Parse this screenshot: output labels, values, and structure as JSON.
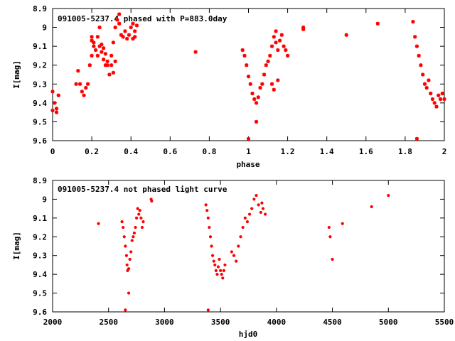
{
  "chart_data": [
    {
      "type": "scatter",
      "title": "091005-5237.4 phased with P=883.0day",
      "xlabel": "phase",
      "ylabel": "I[mag]",
      "xlim": [
        0,
        2
      ],
      "ylim": [
        9.6,
        8.9
      ],
      "y_inverted": true,
      "xticks": [
        "0",
        "0.2",
        "0.4",
        "0.6",
        "0.8",
        "1",
        "1.2",
        "1.4",
        "1.6",
        "1.8",
        "2"
      ],
      "yticks": [
        "8.9",
        "9",
        "9.1",
        "9.2",
        "9.3",
        "9.4",
        "9.5",
        "9.6"
      ],
      "marker_color": "#ff0000",
      "series": [
        {
          "x": [
            0.0,
            0.01,
            0.02,
            0.03,
            0.0,
            0.02,
            0.12,
            0.13,
            0.14,
            0.15,
            0.16,
            0.17,
            0.18,
            0.19,
            0.2,
            0.2,
            0.21,
            0.2,
            0.21,
            0.22,
            0.23,
            0.24,
            0.25,
            0.26,
            0.27,
            0.28,
            0.23,
            0.24,
            0.25,
            0.26,
            0.27,
            0.28,
            0.29,
            0.3,
            0.31,
            0.32,
            0.33,
            0.34,
            0.34,
            0.35,
            0.3,
            0.31,
            0.32,
            0.36,
            0.37,
            0.38,
            0.39,
            0.4,
            0.41,
            0.42,
            0.43,
            0.42,
            0.41,
            0.73,
            0.97,
            0.98,
            0.99,
            1.0,
            1.01,
            1.02,
            1.03,
            1.04,
            1.05,
            1.06,
            1.07,
            1.08,
            1.09,
            1.1,
            1.11,
            1.12,
            1.13,
            1.14,
            1.14,
            1.15,
            1.16,
            1.17,
            1.18,
            1.12,
            1.13,
            1.15,
            1.04,
            1.0,
            1.19,
            1.2,
            1.28,
            1.28,
            1.5,
            1.66,
            1.84,
            1.85,
            1.86,
            1.87,
            1.88,
            1.89,
            1.9,
            1.91,
            1.92,
            1.93,
            1.94,
            1.95,
            1.96,
            1.97,
            1.98,
            1.99,
            2.0,
            1.86
          ],
          "y": [
            9.34,
            9.4,
            9.45,
            9.36,
            9.44,
            9.43,
            9.3,
            9.23,
            9.3,
            9.34,
            9.36,
            9.32,
            9.3,
            9.2,
            9.15,
            9.07,
            9.1,
            9.05,
            9.08,
            9.12,
            9.15,
            9.1,
            9.13,
            9.17,
            9.2,
            9.18,
            9.05,
            9.0,
            9.09,
            9.11,
            9.14,
            9.2,
            9.25,
            9.15,
            9.08,
            9.0,
            8.96,
            8.93,
            8.98,
            9.04,
            9.2,
            9.24,
            9.18,
            9.05,
            9.02,
            9.06,
            9.04,
            9.0,
            8.98,
            9.02,
            8.99,
            9.05,
            9.06,
            9.13,
            9.12,
            9.15,
            9.2,
            9.26,
            9.3,
            9.35,
            9.38,
            9.4,
            9.37,
            9.32,
            9.3,
            9.25,
            9.2,
            9.18,
            9.15,
            9.1,
            9.05,
            9.02,
            9.08,
            9.12,
            9.07,
            9.04,
            9.1,
            9.3,
            9.33,
            9.28,
            9.5,
            9.59,
            9.12,
            9.15,
            9.0,
            9.01,
            9.04,
            8.98,
            8.97,
            9.05,
            9.1,
            9.15,
            9.2,
            9.25,
            9.3,
            9.32,
            9.28,
            9.35,
            9.38,
            9.4,
            9.42,
            9.36,
            9.38,
            9.35,
            9.38,
            9.59
          ]
        }
      ]
    },
    {
      "type": "scatter",
      "title": "091005-5237.4 not phased light curve",
      "xlabel": "hjd0",
      "ylabel": "I[mag]",
      "xlim": [
        2000,
        5500
      ],
      "ylim": [
        9.6,
        8.9
      ],
      "y_inverted": true,
      "xticks": [
        "2000",
        "2500",
        "3000",
        "3500",
        "4000",
        "4500",
        "5000",
        "5500"
      ],
      "yticks": [
        "8.9",
        "9",
        "9.1",
        "9.2",
        "9.3",
        "9.4",
        "9.5",
        "9.6"
      ],
      "marker_color": "#ff0000",
      "series": [
        {
          "x": [
            2410,
            2620,
            2630,
            2640,
            2650,
            2660,
            2665,
            2670,
            2680,
            2690,
            2700,
            2710,
            2720,
            2730,
            2740,
            2750,
            2760,
            2770,
            2780,
            2790,
            2800,
            2810,
            2880,
            2885,
            2650,
            2680,
            3370,
            3380,
            3390,
            3400,
            3410,
            3420,
            3430,
            3440,
            3450,
            3460,
            3470,
            3480,
            3490,
            3500,
            3510,
            3520,
            3530,
            3540,
            3390,
            3600,
            3620,
            3640,
            3660,
            3680,
            3700,
            3720,
            3740,
            3760,
            3780,
            3800,
            3820,
            3840,
            3860,
            3870,
            3880,
            3900,
            4470,
            4480,
            4500,
            4590,
            4850,
            5000
          ],
          "y": [
            9.13,
            9.12,
            9.15,
            9.2,
            9.25,
            9.3,
            9.35,
            9.38,
            9.37,
            9.32,
            9.28,
            9.22,
            9.2,
            9.18,
            9.15,
            9.1,
            9.05,
            9.08,
            9.06,
            9.1,
            9.15,
            9.12,
            9.0,
            9.01,
            9.59,
            9.5,
            9.03,
            9.06,
            9.1,
            9.15,
            9.2,
            9.25,
            9.3,
            9.33,
            9.35,
            9.38,
            9.4,
            9.36,
            9.32,
            9.38,
            9.4,
            9.42,
            9.38,
            9.35,
            9.59,
            9.28,
            9.3,
            9.33,
            9.25,
            9.2,
            9.15,
            9.1,
            9.12,
            9.08,
            9.05,
            9.0,
            8.98,
            9.03,
            9.07,
            9.02,
            9.05,
            9.08,
            9.15,
            9.2,
            9.32,
            9.13,
            9.04,
            8.98
          ]
        }
      ]
    }
  ]
}
